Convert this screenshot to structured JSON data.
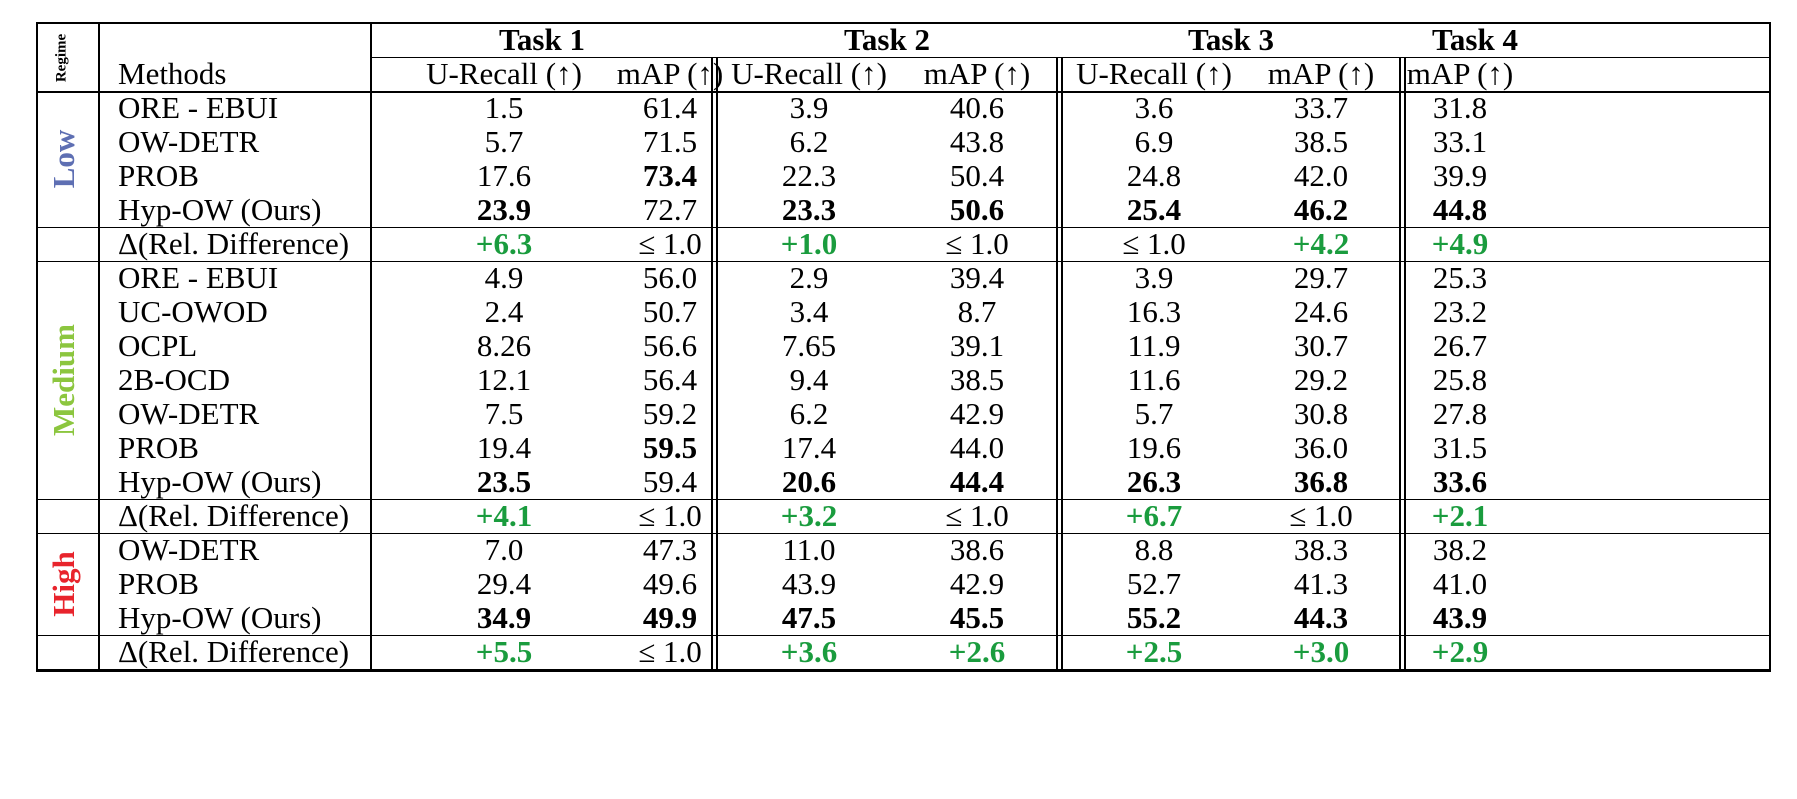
{
  "header": {
    "regime": "Regime",
    "methods": "Methods",
    "tasks": [
      "Task 1",
      "Task 2",
      "Task 3",
      "Task 4"
    ],
    "subcols": [
      "U-Recall (↑)",
      "mAP (↑)",
      "U-Recall (↑)",
      "mAP (↑)",
      "U-Recall (↑)",
      "mAP (↑)",
      "mAP (↑)"
    ]
  },
  "colors": {
    "low": "#5e6fb3",
    "medium": "#8cc63f",
    "high": "#e8242c",
    "diff": "#1a9c3e"
  },
  "sections": [
    {
      "regime": "Low",
      "color": "#5e6fb3",
      "rows": [
        {
          "method": "ORE - EBUI",
          "values": [
            "1.5",
            "61.4",
            "3.9",
            "40.6",
            "3.6",
            "33.7",
            "31.8"
          ],
          "bold": []
        },
        {
          "method": "OW-DETR",
          "values": [
            "5.7",
            "71.5",
            "6.2",
            "43.8",
            "6.9",
            "38.5",
            "33.1"
          ],
          "bold": []
        },
        {
          "method": "PROB",
          "values": [
            "17.6",
            "73.4",
            "22.3",
            "50.4",
            "24.8",
            "42.0",
            "39.9"
          ],
          "bold": [
            1
          ]
        },
        {
          "method": "Hyp-OW (Ours)",
          "values": [
            "23.9",
            "72.7",
            "23.3",
            "50.6",
            "25.4",
            "46.2",
            "44.8"
          ],
          "bold": [
            0,
            2,
            3,
            4,
            5,
            6
          ]
        }
      ],
      "diff": {
        "method": "Δ(Rel. Difference)",
        "values": [
          "+6.3",
          "≤ 1.0",
          "+1.0",
          "≤ 1.0",
          "≤ 1.0",
          "+4.2",
          "+4.9"
        ]
      }
    },
    {
      "regime": "Medium",
      "color": "#8cc63f",
      "rows": [
        {
          "method": "ORE - EBUI",
          "values": [
            "4.9",
            "56.0",
            "2.9",
            "39.4",
            "3.9",
            "29.7",
            "25.3"
          ],
          "bold": []
        },
        {
          "method": "UC-OWOD",
          "values": [
            "2.4",
            "50.7",
            "3.4",
            "8.7",
            "16.3",
            "24.6",
            "23.2"
          ],
          "bold": []
        },
        {
          "method": "OCPL",
          "values": [
            "8.26",
            "56.6",
            "7.65",
            "39.1",
            "11.9",
            "30.7",
            "26.7"
          ],
          "bold": []
        },
        {
          "method": "2B-OCD",
          "values": [
            "12.1",
            "56.4",
            "9.4",
            "38.5",
            "11.6",
            "29.2",
            "25.8"
          ],
          "bold": []
        },
        {
          "method": "OW-DETR",
          "values": [
            "7.5",
            "59.2",
            "6.2",
            "42.9",
            "5.7",
            "30.8",
            "27.8"
          ],
          "bold": []
        },
        {
          "method": "PROB",
          "values": [
            "19.4",
            "59.5",
            "17.4",
            "44.0",
            "19.6",
            "36.0",
            "31.5"
          ],
          "bold": [
            1
          ]
        },
        {
          "method": "Hyp-OW (Ours)",
          "values": [
            "23.5",
            "59.4",
            "20.6",
            "44.4",
            "26.3",
            "36.8",
            "33.6"
          ],
          "bold": [
            0,
            2,
            3,
            4,
            5,
            6
          ]
        }
      ],
      "diff": {
        "method": "Δ(Rel. Difference)",
        "values": [
          "+4.1",
          "≤ 1.0",
          "+3.2",
          "≤ 1.0",
          "+6.7",
          "≤ 1.0",
          "+2.1"
        ]
      }
    },
    {
      "regime": "High",
      "color": "#e8242c",
      "rows": [
        {
          "method": "OW-DETR",
          "values": [
            "7.0",
            "47.3",
            "11.0",
            "38.6",
            "8.8",
            "38.3",
            "38.2"
          ],
          "bold": []
        },
        {
          "method": "PROB",
          "values": [
            "29.4",
            "49.6",
            "43.9",
            "42.9",
            "52.7",
            "41.3",
            "41.0"
          ],
          "bold": []
        },
        {
          "method": "Hyp-OW (Ours)",
          "values": [
            "34.9",
            "49.9",
            "47.5",
            "45.5",
            "55.2",
            "44.3",
            "43.9"
          ],
          "bold": [
            0,
            1,
            2,
            3,
            4,
            5,
            6
          ]
        }
      ],
      "diff": {
        "method": "Δ(Rel. Difference)",
        "values": [
          "+5.5",
          "≤ 1.0",
          "+3.6",
          "+2.6",
          "+2.5",
          "+3.0",
          "+2.9"
        ]
      }
    }
  ]
}
